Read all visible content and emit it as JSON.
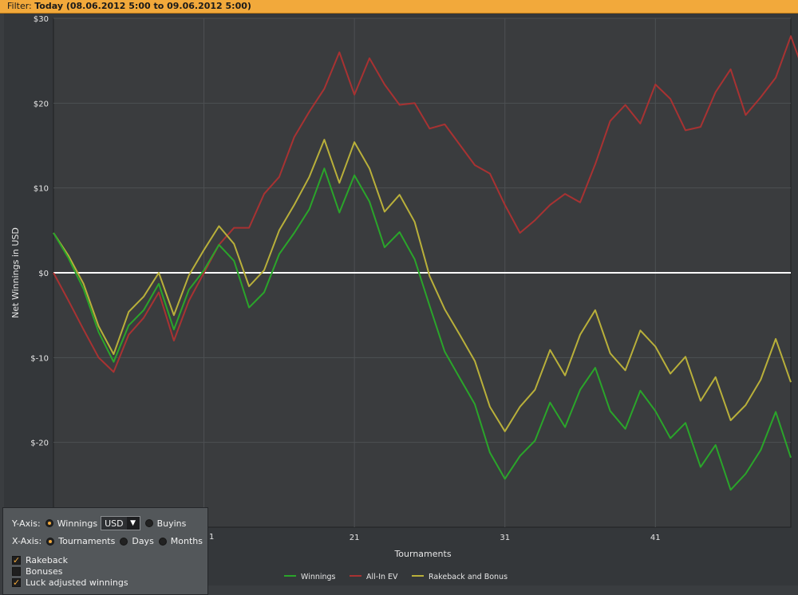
{
  "filter": {
    "label": "Filter:",
    "value": "Today (08.06.2012 5:00 to 09.06.2012 5:00)"
  },
  "chart_data": {
    "type": "line",
    "ylabel": "Net Winnings in USD",
    "xlabel": "Tournaments",
    "ylim": [
      -30,
      30
    ],
    "xlim": [
      1,
      50
    ],
    "yticks": [
      {
        "value": 30,
        "label": "$30"
      },
      {
        "value": 20,
        "label": "$20"
      },
      {
        "value": 10,
        "label": "$10"
      },
      {
        "value": 0,
        "label": "$0"
      },
      {
        "value": -10,
        "label": "$-10"
      },
      {
        "value": -20,
        "label": "$-20"
      }
    ],
    "xticks": [
      {
        "value": 21,
        "label": "21"
      },
      {
        "value": 31,
        "label": "31"
      },
      {
        "value": 41,
        "label": "41"
      }
    ],
    "grid": true,
    "legend_position": "bottom",
    "series": [
      {
        "name": "All-In EV",
        "color": "#a83232",
        "values": [
          0,
          -3.3,
          -6.7,
          -10,
          -11.7,
          -7.3,
          -5.3,
          -2.3,
          -8,
          -3.3,
          0,
          3.3,
          5.3,
          5.3,
          9.3,
          11.3,
          16,
          19,
          21.7,
          26,
          21,
          25.3,
          22.2,
          19.8,
          20,
          17,
          17.5,
          15.1,
          12.7,
          11.7,
          8,
          4.7,
          6.2,
          8,
          9.3,
          8.3,
          12.8,
          17.9,
          19.8,
          17.6,
          22.2,
          20.5,
          16.8,
          17.2,
          21.3,
          24,
          18.6,
          20.7,
          23,
          27.9,
          23
        ]
      },
      {
        "name": "Rakeback and Bonus",
        "color": "#b9b03a",
        "values": [
          4.7,
          2,
          -1.3,
          -6.3,
          -9.6,
          -4.6,
          -2.8,
          0,
          -5,
          -0.3,
          2.7,
          5.5,
          3.4,
          -1.6,
          0.3,
          5,
          8,
          11.3,
          15.7,
          10.6,
          15.4,
          12.3,
          7.2,
          9.2,
          6,
          -0.4,
          -4.3,
          -7.3,
          -10.4,
          -15.8,
          -18.7,
          -15.8,
          -13.8,
          -9.1,
          -12.1,
          -7.3,
          -4.4,
          -9.5,
          -11.5,
          -6.8,
          -8.7,
          -11.9,
          -9.9,
          -15.1,
          -12.3,
          -17.4,
          -15.6,
          -12.6,
          -7.8,
          -12.9
        ]
      },
      {
        "name": "Winnings",
        "color": "#2aa52a",
        "values": [
          4.7,
          1.7,
          -1.9,
          -7,
          -10.5,
          -6.2,
          -4.4,
          -1.3,
          -6.7,
          -2,
          0.3,
          3.3,
          1.4,
          -4.1,
          -2.3,
          2.2,
          4.7,
          7.5,
          12.3,
          7.1,
          11.5,
          8.4,
          3,
          4.8,
          1.6,
          -3.9,
          -9.3,
          -12.4,
          -15.5,
          -21.2,
          -24.3,
          -21.6,
          -19.8,
          -15.3,
          -18.2,
          -13.8,
          -11.2,
          -16.3,
          -18.4,
          -13.9,
          -16.3,
          -19.5,
          -17.7,
          -22.9,
          -20.3,
          -25.6,
          -23.7,
          -20.9,
          -16.4,
          -21.8
        ]
      }
    ],
    "legend": [
      {
        "name": "Winnings",
        "color": "#2aa52a"
      },
      {
        "name": "All-In EV",
        "color": "#a83232"
      },
      {
        "name": "Rakeback and Bonus",
        "color": "#b9b03a"
      }
    ]
  },
  "controls": {
    "y_axis_label": "Y-Axis:",
    "winnings_label": "Winnings",
    "currency_value": "USD",
    "buyins_label": "Buyins",
    "x_axis_label": "X-Axis:",
    "tournaments_label": "Tournaments",
    "days_label": "Days",
    "months_label": "Months",
    "rakeback_label": "Rakeback",
    "bonuses_label": "Bonuses",
    "luck_label": "Luck adjusted winnings",
    "partial_tick_label": "1"
  }
}
